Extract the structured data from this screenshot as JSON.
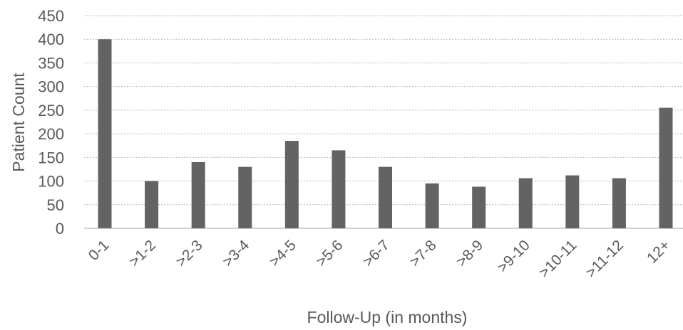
{
  "chart_data": {
    "type": "bar",
    "title": "",
    "xlabel": "Follow-Up (in months)",
    "ylabel": "Patient Count",
    "categories": [
      "0-1",
      ">1-2",
      ">2-3",
      ">3-4",
      ">4-5",
      ">5-6",
      ">6-7",
      ">7-8",
      ">8-9",
      ">9-10",
      ">10-11",
      ">11-12",
      "12+"
    ],
    "values": [
      400,
      100,
      140,
      130,
      185,
      165,
      130,
      95,
      88,
      106,
      112,
      106,
      255
    ],
    "ylim": [
      0,
      450
    ],
    "yticks": [
      0,
      50,
      100,
      150,
      200,
      250,
      300,
      350,
      400,
      450
    ],
    "grid": true,
    "grid_style": "dashed",
    "bar_color": "#636363",
    "legend": "none"
  }
}
